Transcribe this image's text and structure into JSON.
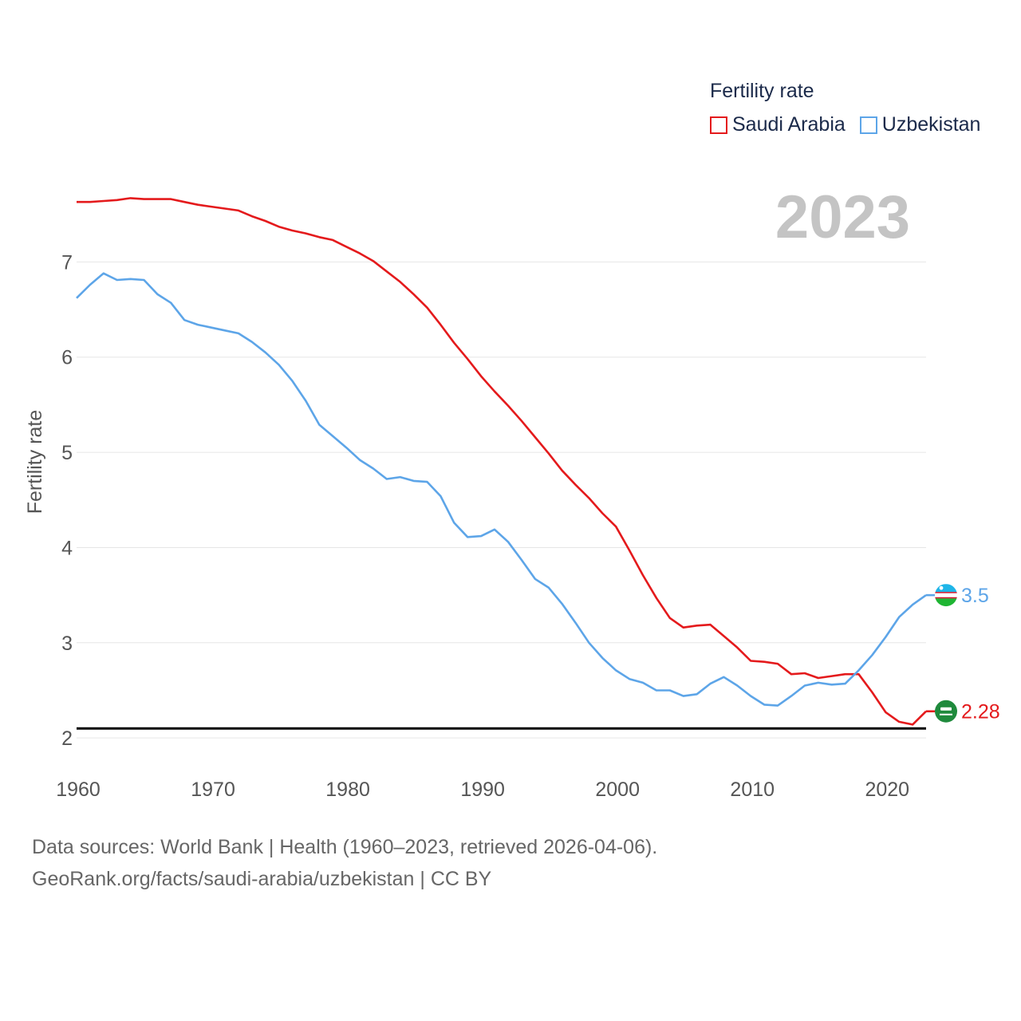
{
  "legend": {
    "title": "Fertility rate",
    "items": [
      {
        "label": "Saudi Arabia",
        "color": "#e41a1c"
      },
      {
        "label": "Uzbekistan",
        "color": "#5da5e8"
      }
    ]
  },
  "footer": {
    "line1": "Data sources: World Bank | Health (1960–2023, retrieved 2026-04-06).",
    "line2": "GeoRank.org/facts/saudi-arabia/uzbekistan | CC BY"
  },
  "chart_data": {
    "type": "line",
    "year_label": "2023",
    "ylabel": "Fertility rate",
    "xlabel": "",
    "xlim": [
      1960,
      2023
    ],
    "ylim": [
      1.75,
      8.0
    ],
    "x_ticks": [
      1960,
      1970,
      1980,
      1990,
      2000,
      2010,
      2020
    ],
    "y_ticks": [
      2,
      3,
      4,
      5,
      6,
      7
    ],
    "reference_line": {
      "value": 2.1,
      "color": "#000000"
    },
    "x": [
      1960,
      1961,
      1962,
      1963,
      1964,
      1965,
      1966,
      1967,
      1968,
      1969,
      1970,
      1971,
      1972,
      1973,
      1974,
      1975,
      1976,
      1977,
      1978,
      1979,
      1980,
      1981,
      1982,
      1983,
      1984,
      1985,
      1986,
      1987,
      1988,
      1989,
      1990,
      1991,
      1992,
      1993,
      1994,
      1995,
      1996,
      1997,
      1998,
      1999,
      2000,
      2001,
      2002,
      2003,
      2004,
      2005,
      2006,
      2007,
      2008,
      2009,
      2010,
      2011,
      2012,
      2013,
      2014,
      2015,
      2016,
      2017,
      2018,
      2019,
      2020,
      2021,
      2022,
      2023
    ],
    "series": [
      {
        "name": "Saudi Arabia",
        "color": "#e41a1c",
        "end_label": "2.28",
        "flag_icon": "saudi-arabia-flag-icon",
        "values": [
          7.63,
          7.63,
          7.64,
          7.65,
          7.67,
          7.66,
          7.66,
          7.66,
          7.63,
          7.6,
          7.58,
          7.56,
          7.54,
          7.48,
          7.43,
          7.37,
          7.33,
          7.3,
          7.26,
          7.23,
          7.16,
          7.09,
          7.01,
          6.9,
          6.79,
          6.66,
          6.52,
          6.34,
          6.15,
          5.98,
          5.8,
          5.64,
          5.49,
          5.33,
          5.16,
          4.99,
          4.81,
          4.66,
          4.52,
          4.36,
          4.22,
          3.97,
          3.71,
          3.47,
          3.26,
          3.16,
          3.18,
          3.19,
          3.07,
          2.95,
          2.81,
          2.8,
          2.78,
          2.67,
          2.68,
          2.63,
          2.65,
          2.67,
          2.67,
          2.48,
          2.27,
          2.17,
          2.14,
          2.28
        ]
      },
      {
        "name": "Uzbekistan",
        "color": "#5da5e8",
        "end_label": "3.5",
        "flag_icon": "uzbekistan-flag-icon",
        "values": [
          6.62,
          6.76,
          6.88,
          6.81,
          6.82,
          6.81,
          6.66,
          6.57,
          6.39,
          6.34,
          6.31,
          6.28,
          6.25,
          6.16,
          6.05,
          5.92,
          5.75,
          5.54,
          5.29,
          5.17,
          5.05,
          4.92,
          4.83,
          4.72,
          4.74,
          4.7,
          4.69,
          4.54,
          4.26,
          4.11,
          4.12,
          4.19,
          4.06,
          3.87,
          3.67,
          3.58,
          3.41,
          3.21,
          3.0,
          2.84,
          2.71,
          2.62,
          2.58,
          2.5,
          2.5,
          2.44,
          2.46,
          2.57,
          2.64,
          2.55,
          2.44,
          2.35,
          2.34,
          2.44,
          2.55,
          2.58,
          2.56,
          2.57,
          2.71,
          2.87,
          3.06,
          3.27,
          3.4,
          3.5
        ]
      }
    ]
  }
}
